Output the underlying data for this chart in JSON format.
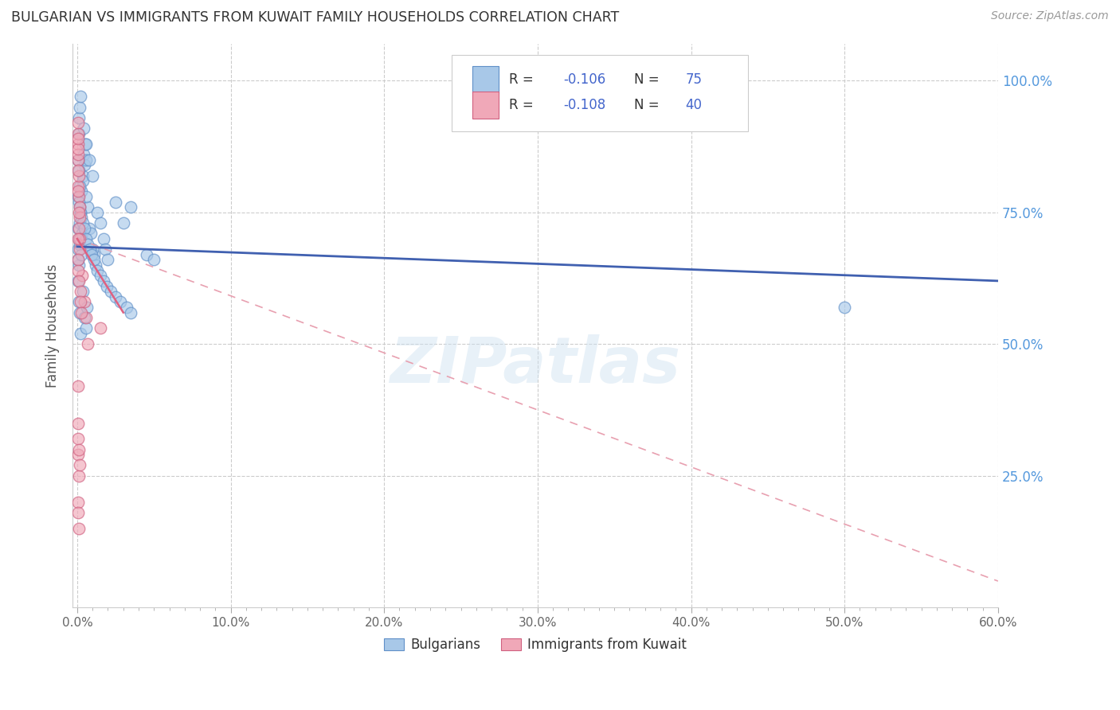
{
  "title": "BULGARIAN VS IMMIGRANTS FROM KUWAIT FAMILY HOUSEHOLDS CORRELATION CHART",
  "source": "Source: ZipAtlas.com",
  "ylabel": "Family Households",
  "x_tick_labels": [
    "0.0%",
    "",
    "",
    "",
    "",
    "",
    "",
    "",
    "",
    "10.0%",
    "",
    "",
    "",
    "",
    "",
    "",
    "",
    "",
    "",
    "20.0%",
    "",
    "",
    "",
    "",
    "",
    "",
    "",
    "",
    "",
    "30.0%",
    "",
    "",
    "",
    "",
    "",
    "",
    "",
    "",
    "",
    "40.0%",
    "",
    "",
    "",
    "",
    "",
    "",
    "",
    "",
    "",
    "50.0%",
    "",
    "",
    "",
    "",
    "",
    "",
    "",
    "",
    "",
    "60.0%"
  ],
  "x_tick_vals_major": [
    0,
    10,
    20,
    30,
    40,
    50,
    60
  ],
  "y_tick_labels": [
    "25.0%",
    "50.0%",
    "75.0%",
    "100.0%"
  ],
  "y_tick_vals": [
    25,
    50,
    75,
    100
  ],
  "xlim": [
    -0.3,
    60
  ],
  "ylim": [
    0,
    107
  ],
  "legend_r1": "R = -0.106",
  "legend_n1": "N = 75",
  "legend_r2": "R = -0.108",
  "legend_n2": "N = 40",
  "legend_label1": "Bulgarians",
  "legend_label2": "Immigrants from Kuwait",
  "blue_color": "#a8c8e8",
  "blue_edge_color": "#6090c8",
  "pink_color": "#f0a8b8",
  "pink_edge_color": "#d06080",
  "blue_line_color": "#4060b0",
  "pink_solid_color": "#e06080",
  "pink_dash_color": "#e8a0b0",
  "blue_scatter": [
    [
      0.05,
      68
    ],
    [
      0.08,
      72
    ],
    [
      0.1,
      65
    ],
    [
      0.12,
      70
    ],
    [
      0.15,
      73
    ],
    [
      0.18,
      69
    ],
    [
      0.2,
      75
    ],
    [
      0.05,
      66
    ],
    [
      0.25,
      67
    ],
    [
      0.3,
      71
    ],
    [
      0.35,
      82
    ],
    [
      0.4,
      86
    ],
    [
      0.5,
      88
    ],
    [
      0.45,
      84
    ],
    [
      0.28,
      79
    ],
    [
      0.38,
      81
    ],
    [
      0.6,
      85
    ],
    [
      0.7,
      76
    ],
    [
      0.8,
      72
    ],
    [
      0.55,
      78
    ],
    [
      0.9,
      71
    ],
    [
      1.1,
      67
    ],
    [
      1.3,
      75
    ],
    [
      1.0,
      68
    ],
    [
      1.2,
      65
    ],
    [
      1.5,
      73
    ],
    [
      1.7,
      70
    ],
    [
      1.8,
      68
    ],
    [
      2.0,
      66
    ],
    [
      2.5,
      77
    ],
    [
      3.0,
      73
    ],
    [
      3.5,
      76
    ],
    [
      0.1,
      90
    ],
    [
      0.12,
      93
    ],
    [
      0.15,
      95
    ],
    [
      0.2,
      97
    ],
    [
      0.4,
      91
    ],
    [
      0.6,
      88
    ],
    [
      0.8,
      85
    ],
    [
      1.0,
      82
    ],
    [
      0.05,
      62
    ],
    [
      0.1,
      58
    ],
    [
      0.15,
      56
    ],
    [
      0.2,
      52
    ],
    [
      0.35,
      60
    ],
    [
      0.45,
      55
    ],
    [
      0.55,
      53
    ],
    [
      0.65,
      57
    ],
    [
      0.07,
      78
    ],
    [
      0.1,
      77
    ],
    [
      0.15,
      76
    ],
    [
      0.2,
      75
    ],
    [
      0.28,
      74
    ],
    [
      0.35,
      73
    ],
    [
      0.45,
      72
    ],
    [
      0.55,
      70
    ],
    [
      0.7,
      69
    ],
    [
      0.85,
      68
    ],
    [
      0.95,
      67
    ],
    [
      1.1,
      66
    ],
    [
      1.3,
      64
    ],
    [
      1.5,
      63
    ],
    [
      1.7,
      62
    ],
    [
      1.9,
      61
    ],
    [
      2.2,
      60
    ],
    [
      2.5,
      59
    ],
    [
      2.8,
      58
    ],
    [
      3.2,
      57
    ],
    [
      3.5,
      56
    ],
    [
      50.0,
      57
    ],
    [
      0.08,
      85
    ],
    [
      0.12,
      83
    ],
    [
      0.18,
      80
    ],
    [
      4.5,
      67
    ],
    [
      5.0,
      66
    ]
  ],
  "pink_scatter": [
    [
      0.05,
      85
    ],
    [
      0.07,
      80
    ],
    [
      0.1,
      82
    ],
    [
      0.05,
      88
    ],
    [
      0.08,
      86
    ],
    [
      0.12,
      78
    ],
    [
      0.15,
      76
    ],
    [
      0.18,
      74
    ],
    [
      0.03,
      90
    ],
    [
      0.04,
      87
    ],
    [
      0.06,
      83
    ],
    [
      0.08,
      79
    ],
    [
      0.1,
      75
    ],
    [
      0.12,
      72
    ],
    [
      0.15,
      70
    ],
    [
      0.18,
      68
    ],
    [
      0.3,
      63
    ],
    [
      0.45,
      58
    ],
    [
      0.05,
      32
    ],
    [
      0.06,
      29
    ],
    [
      0.08,
      35
    ],
    [
      0.09,
      30
    ],
    [
      0.7,
      50
    ],
    [
      0.04,
      66
    ],
    [
      0.05,
      64
    ],
    [
      0.1,
      62
    ],
    [
      0.12,
      25
    ],
    [
      0.15,
      27
    ],
    [
      0.05,
      20
    ],
    [
      0.06,
      18
    ],
    [
      0.55,
      55
    ],
    [
      0.2,
      60
    ],
    [
      0.22,
      58
    ],
    [
      0.25,
      56
    ],
    [
      0.03,
      92
    ],
    [
      0.04,
      89
    ],
    [
      0.05,
      70
    ],
    [
      1.5,
      53
    ],
    [
      0.1,
      15
    ],
    [
      0.08,
      42
    ]
  ],
  "blue_trend_x0": 0,
  "blue_trend_y0": 68.5,
  "blue_trend_x1": 60,
  "blue_trend_y1": 62,
  "pink_solid_x0": 0,
  "pink_solid_y0": 70,
  "pink_solid_x1": 3.0,
  "pink_solid_y1": 56,
  "pink_dash_x0": 0,
  "pink_dash_y0": 70,
  "pink_dash_x1": 60,
  "pink_dash_y1": 5,
  "watermark": "ZIPatlas",
  "background_color": "#ffffff",
  "grid_color": "#cccccc"
}
